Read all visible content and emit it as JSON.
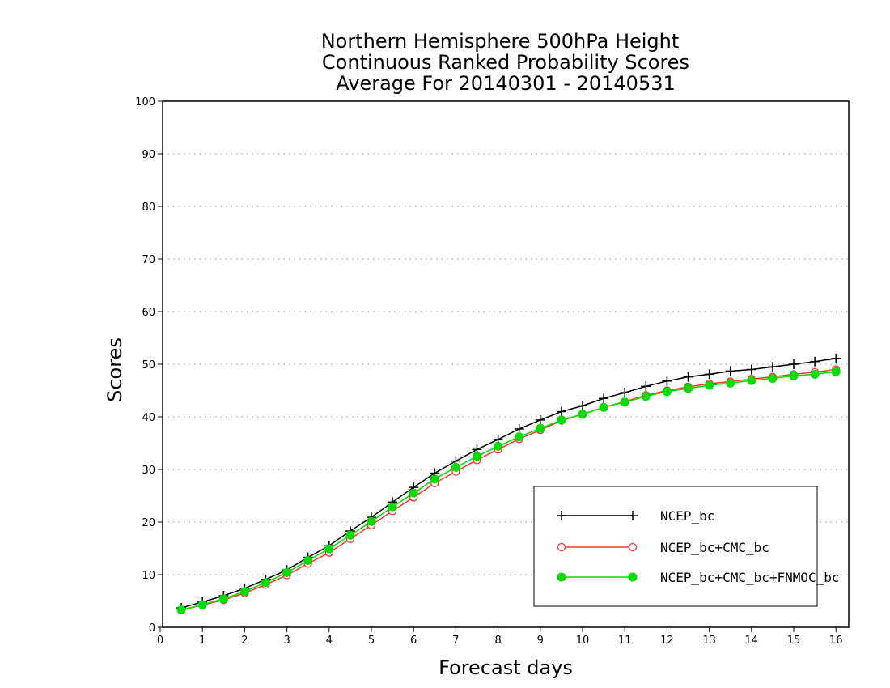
{
  "chart_data": {
    "type": "line",
    "title": [
      "Northern Hemisphere 500hPa Height",
      "Continuous Ranked Probability Scores",
      "Average For 20140301 - 20140531"
    ],
    "xlabel": "Forecast days",
    "ylabel": "Scores",
    "xlim": [
      0,
      16.3
    ],
    "ylim": [
      0,
      100
    ],
    "x_ticks": [
      "0",
      "1",
      "2",
      "3",
      "4",
      "5",
      "6",
      "7",
      "8",
      "9",
      "10",
      "11",
      "12",
      "13",
      "14",
      "15",
      "16"
    ],
    "y_ticks": [
      "0",
      "10",
      "20",
      "30",
      "40",
      "50",
      "60",
      "70",
      "80",
      "90",
      "100"
    ],
    "grid": "horizontal dotted",
    "legend_position": "bottom-right",
    "x": [
      0.5,
      1,
      1.5,
      2,
      2.5,
      3,
      3.5,
      4,
      4.5,
      5,
      5.5,
      6,
      6.5,
      7,
      7.5,
      8,
      8.5,
      9,
      9.5,
      10,
      10.5,
      11,
      11.5,
      12,
      12.5,
      13,
      13.5,
      14,
      14.5,
      15,
      15.5,
      16
    ],
    "series": [
      {
        "name": "NCEP_bc",
        "color": "#000000",
        "marker": "plus",
        "values": [
          3.7,
          4.8,
          6.0,
          7.4,
          9.1,
          10.9,
          13.3,
          15.5,
          18.3,
          20.9,
          23.8,
          26.6,
          29.3,
          31.6,
          33.8,
          35.7,
          37.7,
          39.4,
          41.0,
          42.1,
          43.5,
          44.6,
          45.8,
          46.8,
          47.6,
          48.1,
          48.7,
          49.0,
          49.5,
          50.0,
          50.5,
          51.1
        ]
      },
      {
        "name": "NCEP_bc+CMC_bc",
        "color": "#ff3333",
        "marker": "open-circle",
        "values": [
          3.3,
          4.2,
          5.2,
          6.5,
          8.1,
          9.9,
          12.1,
          14.2,
          16.8,
          19.4,
          22.1,
          24.7,
          27.4,
          29.6,
          31.8,
          33.8,
          35.8,
          37.5,
          39.3,
          40.5,
          41.8,
          42.9,
          44.1,
          45.0,
          45.7,
          46.3,
          46.7,
          47.2,
          47.6,
          48.1,
          48.5,
          49.0
        ]
      },
      {
        "name": "NCEP_bc+CMC_bc+FNMOC_bc",
        "color": "#00dd00",
        "marker": "filled-circle",
        "values": [
          3.3,
          4.3,
          5.4,
          6.8,
          8.5,
          10.4,
          12.7,
          14.9,
          17.5,
          20.1,
          22.9,
          25.5,
          28.2,
          30.4,
          32.5,
          34.4,
          36.2,
          37.8,
          39.4,
          40.5,
          41.8,
          42.8,
          43.9,
          44.8,
          45.4,
          46.0,
          46.4,
          46.9,
          47.3,
          47.8,
          48.1,
          48.6
        ]
      }
    ]
  }
}
